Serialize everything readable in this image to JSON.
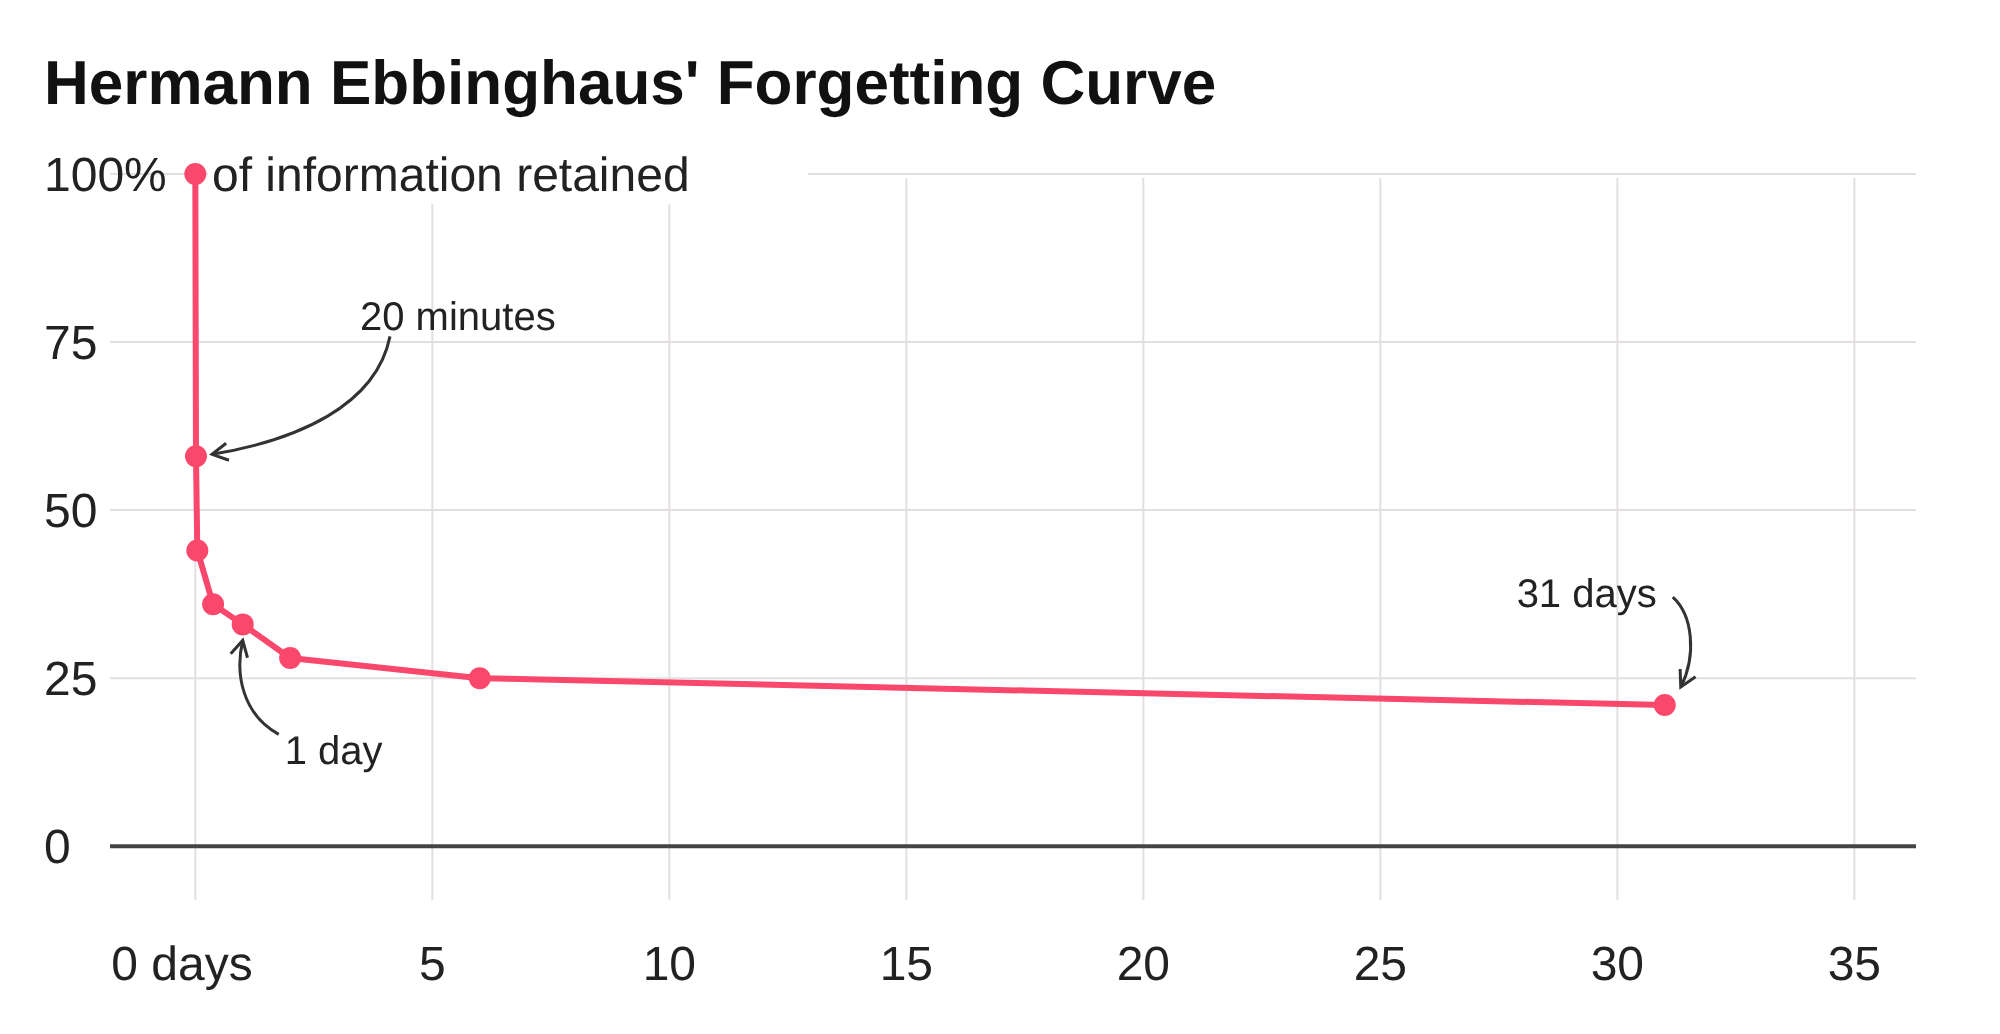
{
  "chart_data": {
    "type": "line",
    "title": "Hermann Ebbinghaus' Forgetting Curve",
    "ylabel": "of information retained",
    "x": [
      0,
      0.014,
      0.042,
      0.375,
      1,
      2,
      6,
      31
    ],
    "series": [
      {
        "color": "#f9486b",
        "values": [
          100,
          58,
          44,
          36,
          33,
          28,
          25,
          21
        ]
      }
    ],
    "xlim": [
      -1.8,
      36.3
    ],
    "xticks": [
      {
        "value": 0,
        "label": "0 days"
      },
      5,
      10,
      15,
      20,
      25,
      30,
      35
    ],
    "ylim": [
      -8,
      100
    ],
    "yticks": [
      0,
      25,
      50,
      75,
      {
        "value": 100,
        "label": "100%"
      }
    ],
    "grid": true,
    "marker": "circle",
    "line_style": "solid",
    "annotations": [
      {
        "text": "20 minutes",
        "x": 0.014,
        "y": 58
      },
      {
        "text": "1 day",
        "x": 1,
        "y": 33
      },
      {
        "text": "31 days",
        "x": 31,
        "y": 21
      }
    ]
  }
}
